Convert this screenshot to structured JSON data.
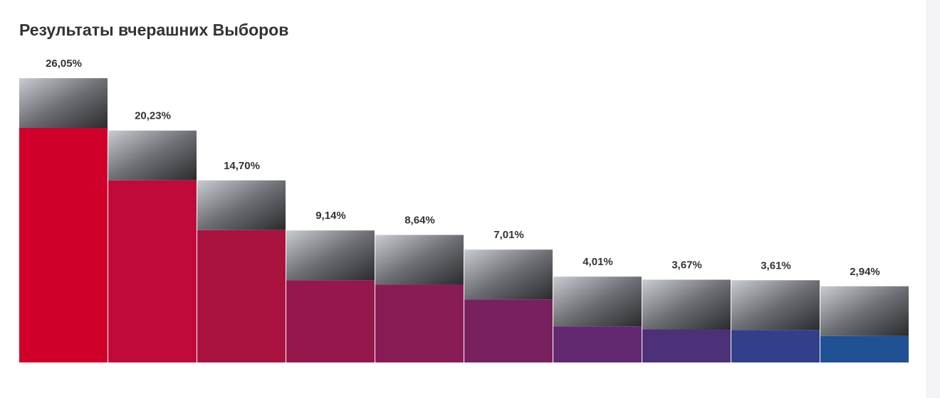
{
  "chart_data": {
    "type": "bar",
    "title": "Результаты вчерашних Выборов",
    "values": [
      26.05,
      20.23,
      14.7,
      9.14,
      8.64,
      7.01,
      4.01,
      3.67,
      3.61,
      2.94
    ],
    "value_labels": [
      "26,05%",
      "20,23%",
      "14,70%",
      "9,14%",
      "8,64%",
      "7,01%",
      "4,01%",
      "3,67%",
      "3,61%",
      "2,94%"
    ],
    "colors": [
      "#d0002a",
      "#bf0a3a",
      "#aa123f",
      "#95174c",
      "#891c55",
      "#78215f",
      "#632870",
      "#4d3178",
      "#323f8b",
      "#1f5194"
    ]
  }
}
